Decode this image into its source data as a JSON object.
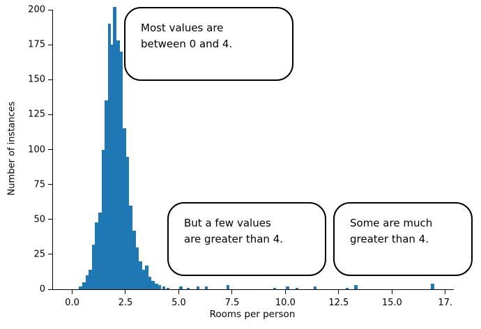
{
  "chart_data": {
    "type": "bar",
    "title": "",
    "xlabel": "Rooms per person",
    "ylabel": "Number of instances",
    "xlim": [
      -0.9,
      17.9
    ],
    "ylim": [
      0,
      200
    ],
    "x_ticks": [
      0.0,
      2.5,
      5.0,
      7.5,
      10.0,
      12.5,
      15.0,
      17.5
    ],
    "x_tick_labels": [
      "0.0",
      "2.5",
      "5.0",
      "7.5",
      "10.0",
      "12.5",
      "15.0",
      "17."
    ],
    "y_ticks": [
      0,
      25,
      50,
      75,
      100,
      125,
      150,
      175,
      200
    ],
    "bar_color": "#1f77b4",
    "axis_color": "#000000",
    "grid": false,
    "legend": "none",
    "bin_width": 0.15,
    "bins": [
      {
        "x": 0.4,
        "count": 2
      },
      {
        "x": 0.55,
        "count": 5
      },
      {
        "x": 0.7,
        "count": 10
      },
      {
        "x": 0.85,
        "count": 14
      },
      {
        "x": 1.0,
        "count": 32
      },
      {
        "x": 1.15,
        "count": 48
      },
      {
        "x": 1.3,
        "count": 55
      },
      {
        "x": 1.45,
        "count": 100
      },
      {
        "x": 1.6,
        "count": 135
      },
      {
        "x": 1.75,
        "count": 190
      },
      {
        "x": 1.9,
        "count": 175
      },
      {
        "x": 2.0,
        "count": 202
      },
      {
        "x": 2.15,
        "count": 178
      },
      {
        "x": 2.3,
        "count": 170
      },
      {
        "x": 2.45,
        "count": 115
      },
      {
        "x": 2.6,
        "count": 95
      },
      {
        "x": 2.75,
        "count": 60
      },
      {
        "x": 2.9,
        "count": 42
      },
      {
        "x": 3.05,
        "count": 30
      },
      {
        "x": 3.2,
        "count": 20
      },
      {
        "x": 3.35,
        "count": 14
      },
      {
        "x": 3.5,
        "count": 17
      },
      {
        "x": 3.65,
        "count": 9
      },
      {
        "x": 3.8,
        "count": 6
      },
      {
        "x": 3.95,
        "count": 4
      },
      {
        "x": 4.1,
        "count": 3
      },
      {
        "x": 4.3,
        "count": 2
      },
      {
        "x": 4.5,
        "count": 1
      },
      {
        "x": 5.1,
        "count": 2
      },
      {
        "x": 5.45,
        "count": 1
      },
      {
        "x": 5.9,
        "count": 2
      },
      {
        "x": 6.3,
        "count": 2
      },
      {
        "x": 7.3,
        "count": 3
      },
      {
        "x": 9.5,
        "count": 1
      },
      {
        "x": 10.1,
        "count": 2
      },
      {
        "x": 10.55,
        "count": 1
      },
      {
        "x": 11.4,
        "count": 2
      },
      {
        "x": 12.9,
        "count": 1
      },
      {
        "x": 13.3,
        "count": 3
      },
      {
        "x": 16.9,
        "count": 4
      }
    ]
  },
  "annotations": [
    {
      "id": "most-values",
      "lines": [
        "Most values are",
        "between 0 and 4."
      ]
    },
    {
      "id": "few-values",
      "lines": [
        "But a few values",
        "are greater than 4."
      ]
    },
    {
      "id": "much-greater",
      "lines": [
        "Some are much",
        "greater than 4."
      ]
    }
  ]
}
